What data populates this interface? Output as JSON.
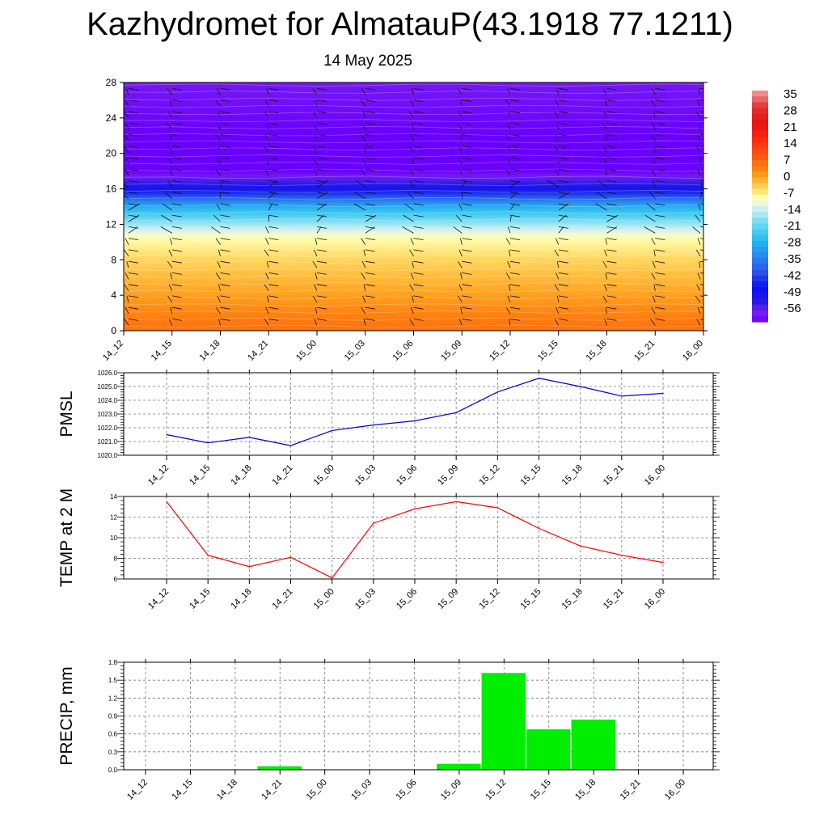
{
  "title": "Kazhydromet for AlmatauP(43.1918 77.1211)",
  "subtitle": "14 May 2025",
  "chart_data": [
    {
      "type": "heatmap",
      "title": "",
      "xlabel": "",
      "ylabel": "",
      "categories": [
        "14_12",
        "14_15",
        "14_18",
        "14_21",
        "15_00",
        "15_03",
        "15_06",
        "15_09",
        "15_12",
        "15_15",
        "15_18",
        "15_21",
        "16_00"
      ],
      "ylim": [
        0,
        28
      ],
      "yticks": [
        0,
        4,
        8,
        12,
        16,
        20,
        24,
        28
      ],
      "level_profile": {
        "levels": [
          0,
          4,
          8,
          10.5,
          11.5,
          14,
          16,
          18,
          19,
          22,
          28
        ],
        "temps": [
          5,
          0,
          -5,
          -9,
          -14,
          -28,
          -48,
          -60,
          -62,
          -60,
          -57
        ]
      },
      "colorbar": {
        "labels": [
          "35",
          "28",
          "21",
          "14",
          "7",
          "0",
          "-7",
          "-14",
          "-21",
          "-28",
          "-35",
          "-42",
          "-49",
          "-56"
        ]
      },
      "barbs_drawn": true
    },
    {
      "type": "line",
      "title": "",
      "xlabel": "",
      "ylabel": "PMSL",
      "categories": [
        "14_12",
        "14_15",
        "14_18",
        "14_21",
        "15_00",
        "15_03",
        "15_06",
        "15_09",
        "15_12",
        "15_15",
        "15_18",
        "15_21",
        "16_00"
      ],
      "ylim": [
        1020.0,
        1026.0
      ],
      "yticks": [
        "1020.0",
        "1021.0",
        "1022.0",
        "1023.0",
        "1024.0",
        "1025.0",
        "1026.0"
      ],
      "series": [
        {
          "values": [
            1021.5,
            1020.9,
            1021.3,
            1020.7,
            1021.8,
            1022.2,
            1022.5,
            1023.1,
            1024.6,
            1025.6,
            1025.0,
            1024.3,
            1024.5
          ],
          "color": "#0000cc"
        }
      ],
      "grid": true
    },
    {
      "type": "line",
      "title": "",
      "xlabel": "",
      "ylabel": "TEMP at 2 M",
      "categories": [
        "14_12",
        "14_15",
        "14_18",
        "14_21",
        "15_00",
        "15_03",
        "15_06",
        "15_09",
        "15_12",
        "15_15",
        "15_18",
        "15_21",
        "16_00"
      ],
      "ylim": [
        6,
        14
      ],
      "yticks": [
        "6",
        "8",
        "10",
        "12",
        "14"
      ],
      "series": [
        {
          "values": [
            13.5,
            8.3,
            7.2,
            8.1,
            6.1,
            11.4,
            12.8,
            13.5,
            12.9,
            10.9,
            9.2,
            8.3,
            7.6
          ],
          "color": "#ff0000"
        }
      ],
      "grid": true
    },
    {
      "type": "bar",
      "title": "",
      "xlabel": "",
      "ylabel": "PRECIP, mm",
      "categories": [
        "14_12",
        "14_15",
        "14_18",
        "14_21",
        "15_00",
        "15_03",
        "15_06",
        "15_09",
        "15_12",
        "15_15",
        "15_18",
        "15_21",
        "16_00"
      ],
      "values": [
        0,
        0,
        0,
        0.06,
        0,
        0,
        0,
        0.1,
        1.62,
        0.68,
        0.84,
        0,
        0
      ],
      "ylim": [
        0,
        1.8
      ],
      "yticks": [
        "0.0",
        "0.3",
        "0.6",
        "0.9",
        "1.2",
        "1.5",
        "1.8"
      ],
      "color": "#00ee00",
      "grid": true
    }
  ]
}
